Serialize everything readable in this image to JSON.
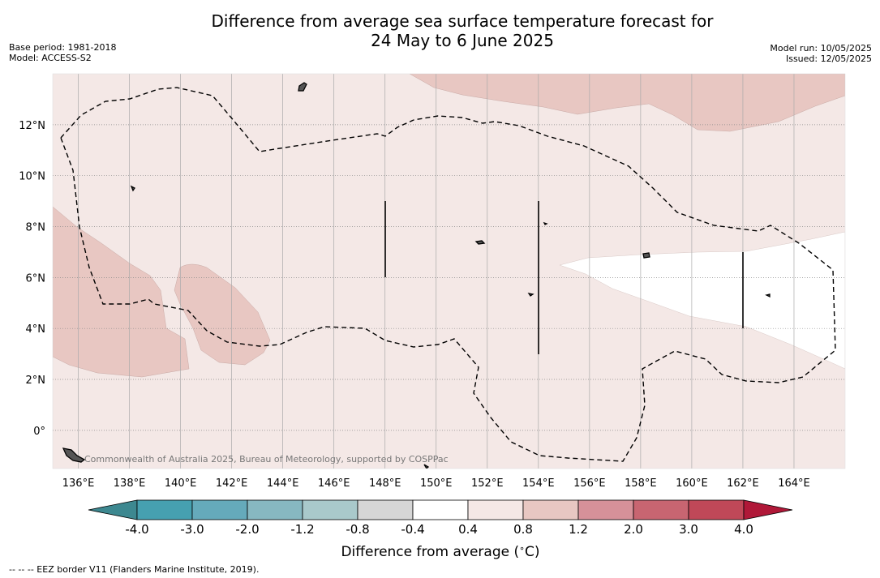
{
  "title_line1": "Difference from average sea surface temperature forecast for",
  "title_line2": "24 May to 6 June 2025",
  "base_period": "Base period: 1981-2018",
  "model": "Model: ACCESS-S2",
  "model_run": "Model run: 10/05/2025",
  "issued": "Issued: 12/05/2025",
  "copyright": "Commonwealth of Australia 2025, Bureau of Meteorology, supported by COSPPac",
  "map": {
    "lon_range": [
      135,
      166
    ],
    "lat_range": [
      -1.5,
      14
    ],
    "lon_ticks": [
      "136°E",
      "138°E",
      "140°E",
      "142°E",
      "144°E",
      "146°E",
      "148°E",
      "150°E",
      "152°E",
      "154°E",
      "156°E",
      "158°E",
      "160°E",
      "162°E",
      "164°E"
    ],
    "lat_ticks": [
      "12°N",
      "10°N",
      "8°N",
      "6°N",
      "4°N",
      "2°N",
      "0°"
    ],
    "grid": true
  },
  "colors": {
    "background_anomaly": "#f4e8e6",
    "warm_anomaly": "#e8c7c2",
    "neutral": "#ffffff"
  },
  "colorbar": {
    "boundaries": [
      "-4.0",
      "-3.0",
      "-2.0",
      "-1.2",
      "-0.8",
      "-0.4",
      "0.4",
      "0.8",
      "1.2",
      "2.0",
      "3.0",
      "4.0"
    ],
    "colors": [
      "#46a0b0",
      "#65aabb",
      "#87b8c1",
      "#a9c9cb",
      "#d6d6d6",
      "#ffffff",
      "#f5e8e6",
      "#e8c7c2",
      "#d69199",
      "#c86571",
      "#c04858"
    ],
    "under_color": "#3d8890",
    "over_color": "#b01838",
    "label": "Difference from average ($^\\circ$C)"
  },
  "footnote": "--  --  -- EEZ border V11 (Flanders Marine Institute, 2019)."
}
